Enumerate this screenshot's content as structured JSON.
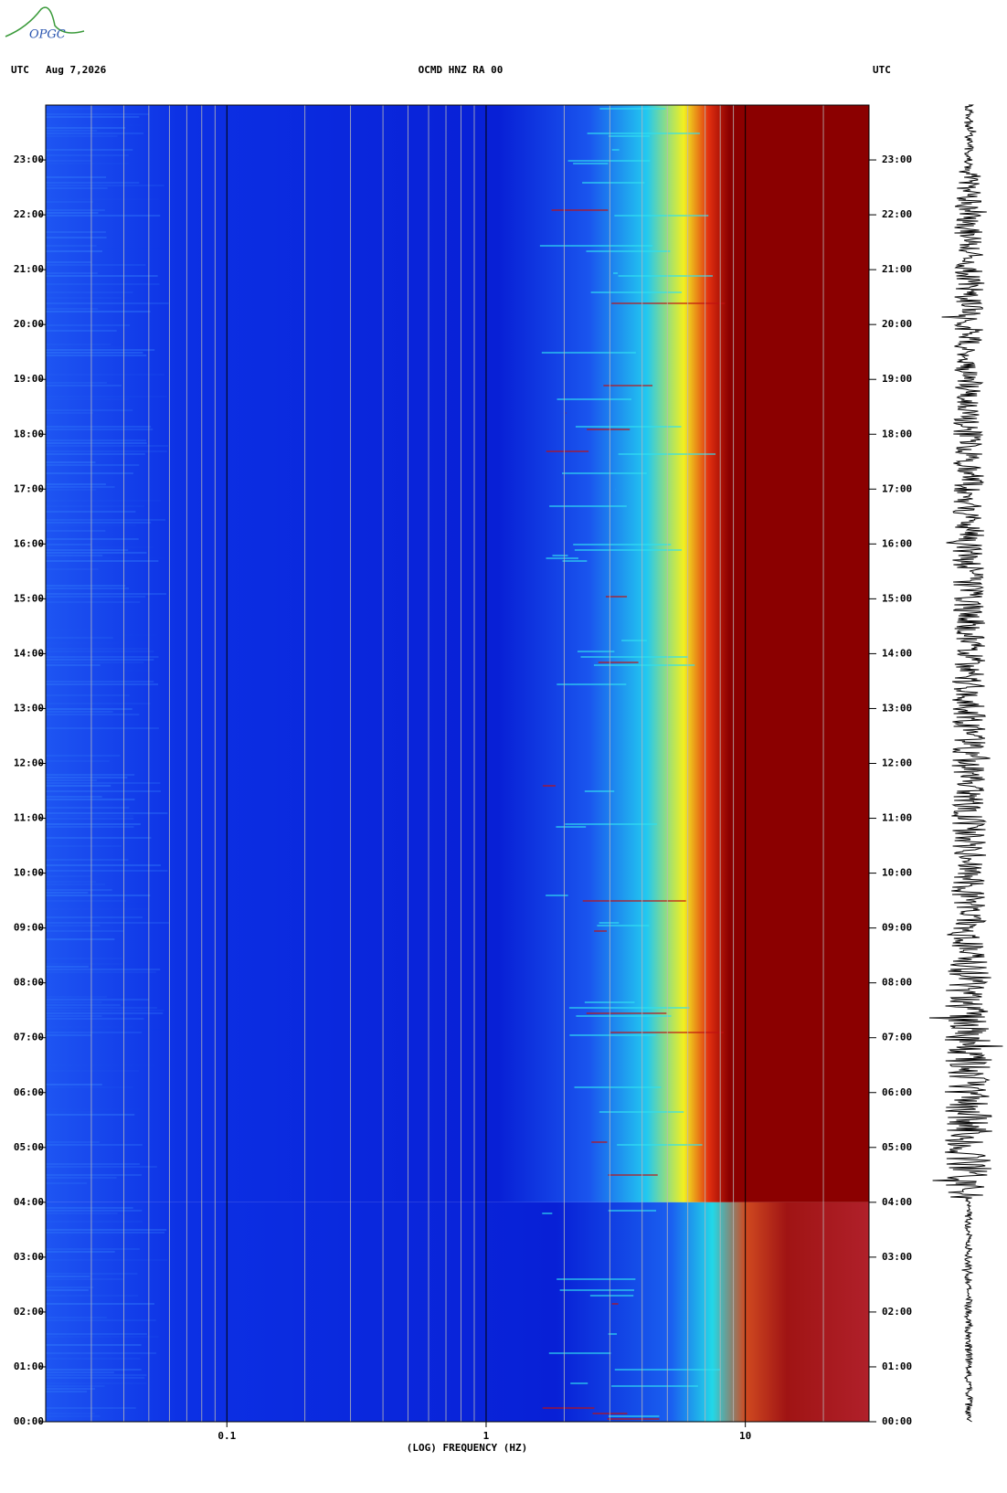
{
  "header": {
    "logo": "OPGC",
    "left": "UTC",
    "date": "Aug 7,2026",
    "title": "OCMD HNZ RA 00",
    "right": "UTC"
  },
  "chart_data": {
    "type": "spectrogram",
    "xlabel": "(LOG) FREQUENCY (HZ)",
    "xscale": "log",
    "xlim": [
      0.02,
      30
    ],
    "xticks": [
      0.1,
      1,
      10
    ],
    "ylim": [
      0,
      24
    ],
    "yticks": [
      {
        "value": 0,
        "label": "00:00"
      },
      {
        "value": 1,
        "label": "01:00"
      },
      {
        "value": 2,
        "label": "02:00"
      },
      {
        "value": 3,
        "label": "03:00"
      },
      {
        "value": 4,
        "label": "04:00"
      },
      {
        "value": 5,
        "label": "05:00"
      },
      {
        "value": 6,
        "label": "06:00"
      },
      {
        "value": 7,
        "label": "07:00"
      },
      {
        "value": 8,
        "label": "08:00"
      },
      {
        "value": 9,
        "label": "09:00"
      },
      {
        "value": 10,
        "label": "10:00"
      },
      {
        "value": 11,
        "label": "11:00"
      },
      {
        "value": 12,
        "label": "12:00"
      },
      {
        "value": 13,
        "label": "13:00"
      },
      {
        "value": 14,
        "label": "14:00"
      },
      {
        "value": 15,
        "label": "15:00"
      },
      {
        "value": 16,
        "label": "16:00"
      },
      {
        "value": 17,
        "label": "17:00"
      },
      {
        "value": 18,
        "label": "18:00"
      },
      {
        "value": 19,
        "label": "19:00"
      },
      {
        "value": 20,
        "label": "20:00"
      },
      {
        "value": 21,
        "label": "21:00"
      },
      {
        "value": 22,
        "label": "22:00"
      },
      {
        "value": 23,
        "label": "23:00"
      }
    ]
  }
}
